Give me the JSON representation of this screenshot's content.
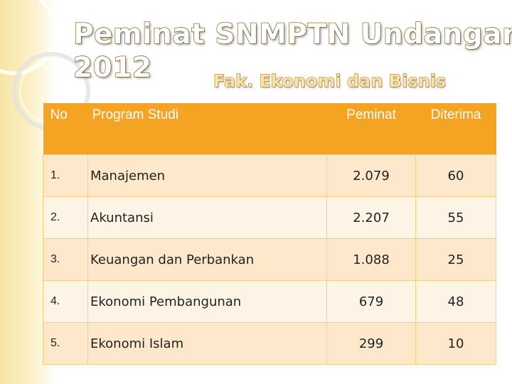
{
  "title": {
    "line1": "Peminat SNMPTN Undangan",
    "line2": "2012"
  },
  "subtitle": "Fak. Ekonomi dan Bisnis",
  "table": {
    "headers": {
      "no": "No",
      "program": "Program Studi",
      "peminat": "Peminat",
      "diterima": "Diterima"
    },
    "rows": [
      {
        "no": "1.",
        "program": "Manajemen",
        "peminat": "2.079",
        "diterima": "60"
      },
      {
        "no": "2.",
        "program": "Akuntansi",
        "peminat": "2.207",
        "diterima": "55"
      },
      {
        "no": "3.",
        "program": "Keuangan dan Perbankan",
        "peminat": "1.088",
        "diterima": "25"
      },
      {
        "no": "4.",
        "program": "Ekonomi Pembangunan",
        "peminat": "679",
        "diterima": "48"
      },
      {
        "no": "5.",
        "program": "Ekonomi Islam",
        "peminat": "299",
        "diterima": "10"
      }
    ]
  },
  "colors": {
    "header_bg": "#f5a323",
    "row_odd": "#fde8cb",
    "row_even": "#fef4e6",
    "title_stroke": "#7a5a0c",
    "subtitle_fill": "#fce3a6"
  }
}
